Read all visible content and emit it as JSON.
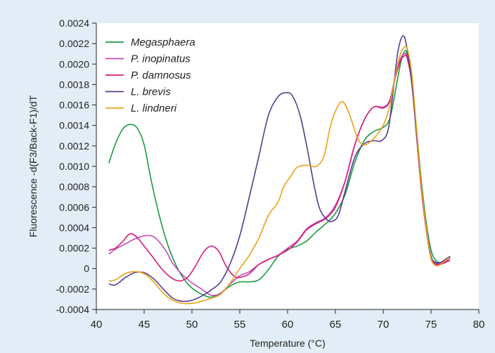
{
  "colors": {
    "background": "#e3edf7",
    "plot_background": "#ffffff",
    "axis": "#222222"
  },
  "chart_data": {
    "type": "line",
    "title": "",
    "xlabel": "Temperature (°C)",
    "ylabel": "Fluorescence -d(F3/Back-F1)/dT",
    "xlim": [
      40,
      80
    ],
    "ylim": [
      -0.0004,
      0.0024
    ],
    "x_ticks": [
      40,
      45,
      50,
      55,
      60,
      65,
      70,
      75,
      80
    ],
    "x_tick_labels": [
      "40",
      "45",
      "50",
      "55",
      "60",
      "65",
      "70",
      "75",
      "80"
    ],
    "y_ticks": [
      -0.0004,
      -0.0002,
      0,
      0.0002,
      0.0004,
      0.0006,
      0.0008,
      0.001,
      0.0012,
      0.0014,
      0.0016,
      0.0018,
      0.002,
      0.0022,
      0.0024
    ],
    "y_tick_labels": [
      "-0.0004",
      "-0.0002",
      "0",
      "0.0002",
      "0.0004",
      "0.0006",
      "0.0008",
      "0.0010",
      "0.0012",
      "0.0014",
      "0.0016",
      "0.0018",
      "0.0020",
      "0.0022",
      "0.0024"
    ],
    "grid": false,
    "legend_position": "top-left",
    "series": [
      {
        "name": "Megasphaera",
        "color": "#1a9a44",
        "points": [
          [
            41.3,
            0.00103
          ],
          [
            42.0,
            0.00122
          ],
          [
            42.8,
            0.00137
          ],
          [
            43.6,
            0.00141
          ],
          [
            44.3,
            0.00137
          ],
          [
            45.0,
            0.00121
          ],
          [
            45.7,
            0.00088
          ],
          [
            46.5,
            0.00055
          ],
          [
            47.3,
            0.00028
          ],
          [
            48.1,
            8e-05
          ],
          [
            49.0,
            -8e-05
          ],
          [
            50.0,
            -0.00019
          ],
          [
            51.0,
            -0.00025
          ],
          [
            52.0,
            -0.00028
          ],
          [
            53.0,
            -0.00024
          ],
          [
            54.0,
            -0.00017
          ],
          [
            55.0,
            -0.00013
          ],
          [
            56.0,
            -0.00013
          ],
          [
            57.0,
            -0.00011
          ],
          [
            58.0,
            -1e-05
          ],
          [
            59.0,
            0.00012
          ],
          [
            60.0,
            0.00019
          ],
          [
            61.0,
            0.00022
          ],
          [
            62.0,
            0.00027
          ],
          [
            63.0,
            0.00036
          ],
          [
            64.0,
            0.00044
          ],
          [
            65.0,
            0.00054
          ],
          [
            66.0,
            0.00072
          ],
          [
            67.0,
            0.00103
          ],
          [
            68.0,
            0.00125
          ],
          [
            69.0,
            0.00134
          ],
          [
            70.0,
            0.00138
          ],
          [
            70.7,
            0.00147
          ],
          [
            71.3,
            0.00175
          ],
          [
            71.8,
            0.002
          ],
          [
            72.2,
            0.00212
          ],
          [
            72.5,
            0.0021
          ],
          [
            73.0,
            0.00185
          ],
          [
            73.5,
            0.00135
          ],
          [
            74.0,
            0.00085
          ],
          [
            74.5,
            0.00045
          ],
          [
            75.0,
            0.00018
          ],
          [
            75.5,
            8e-05
          ],
          [
            76.0,
            6e-05
          ],
          [
            76.5,
            8e-05
          ],
          [
            77.0,
            0.00011
          ]
        ]
      },
      {
        "name": "P. inopinatus",
        "color": "#c24ab8",
        "points": [
          [
            41.3,
            0.00014
          ],
          [
            42.0,
            0.00019
          ],
          [
            43.0,
            0.00024
          ],
          [
            44.0,
            0.00029
          ],
          [
            45.0,
            0.00032
          ],
          [
            45.8,
            0.00032
          ],
          [
            46.5,
            0.00027
          ],
          [
            47.3,
            0.00017
          ],
          [
            48.0,
            5e-05
          ],
          [
            49.0,
            -6e-05
          ],
          [
            50.0,
            -0.00014
          ],
          [
            51.0,
            -0.0002
          ],
          [
            52.0,
            -0.00026
          ],
          [
            53.0,
            -0.00024
          ],
          [
            54.0,
            -0.00015
          ],
          [
            55.0,
            -7e-05
          ],
          [
            56.0,
            -3e-05
          ],
          [
            57.0,
            4e-05
          ],
          [
            58.0,
            9e-05
          ],
          [
            59.0,
            0.00013
          ],
          [
            60.0,
            0.0002
          ],
          [
            61.0,
            0.00027
          ],
          [
            62.0,
            0.00039
          ],
          [
            63.0,
            0.00045
          ],
          [
            64.0,
            0.0005
          ],
          [
            65.0,
            0.00062
          ],
          [
            66.0,
            0.00085
          ],
          [
            67.0,
            0.0012
          ],
          [
            68.0,
            0.00145
          ],
          [
            69.0,
            0.00158
          ],
          [
            70.0,
            0.00158
          ],
          [
            70.7,
            0.00165
          ],
          [
            71.3,
            0.0019
          ],
          [
            71.8,
            0.00205
          ],
          [
            72.2,
            0.0021
          ],
          [
            72.5,
            0.00207
          ],
          [
            73.0,
            0.00182
          ],
          [
            73.5,
            0.0013
          ],
          [
            74.0,
            0.00078
          ],
          [
            74.5,
            0.0004
          ],
          [
            75.0,
            0.00012
          ],
          [
            75.5,
            5e-05
          ],
          [
            76.0,
            5e-05
          ],
          [
            76.5,
            7e-05
          ],
          [
            77.0,
            0.0001
          ]
        ]
      },
      {
        "name": "P. damnosus",
        "color": "#d81b78",
        "points": [
          [
            41.3,
            0.00018
          ],
          [
            42.0,
            0.0002
          ],
          [
            42.8,
            0.00027
          ],
          [
            43.5,
            0.00034
          ],
          [
            44.2,
            0.00031
          ],
          [
            45.0,
            0.00022
          ],
          [
            46.0,
            0.0001
          ],
          [
            47.0,
            -2e-05
          ],
          [
            48.0,
            -0.0001
          ],
          [
            48.8,
            -0.00012
          ],
          [
            49.6,
            -8e-05
          ],
          [
            50.4,
            3e-05
          ],
          [
            51.2,
            0.00016
          ],
          [
            52.0,
            0.00022
          ],
          [
            52.8,
            0.00017
          ],
          [
            53.6,
            2e-05
          ],
          [
            54.5,
            -8e-05
          ],
          [
            55.3,
            -8e-05
          ],
          [
            56.0,
            -5e-05
          ],
          [
            57.0,
            4e-05
          ],
          [
            58.0,
            9e-05
          ],
          [
            59.0,
            0.00013
          ],
          [
            60.0,
            0.00018
          ],
          [
            61.0,
            0.00026
          ],
          [
            62.0,
            0.00038
          ],
          [
            63.0,
            0.00044
          ],
          [
            64.0,
            0.00049
          ],
          [
            65.0,
            0.0006
          ],
          [
            66.0,
            0.00085
          ],
          [
            67.0,
            0.0012
          ],
          [
            68.0,
            0.00145
          ],
          [
            69.0,
            0.00158
          ],
          [
            70.0,
            0.00157
          ],
          [
            70.7,
            0.00164
          ],
          [
            71.3,
            0.00188
          ],
          [
            71.8,
            0.00203
          ],
          [
            72.2,
            0.00208
          ],
          [
            72.5,
            0.00206
          ],
          [
            73.0,
            0.00181
          ],
          [
            73.5,
            0.00128
          ],
          [
            74.0,
            0.00076
          ],
          [
            74.5,
            0.00038
          ],
          [
            75.0,
            0.0001
          ],
          [
            75.5,
            4e-05
          ],
          [
            76.0,
            4e-05
          ],
          [
            76.5,
            6e-05
          ],
          [
            77.0,
            8e-05
          ]
        ]
      },
      {
        "name": "L. brevis",
        "color": "#5a3a8c",
        "points": [
          [
            41.3,
            -0.00015
          ],
          [
            42.0,
            -0.00016
          ],
          [
            43.0,
            -9e-05
          ],
          [
            44.0,
            -4e-05
          ],
          [
            45.0,
            -4e-05
          ],
          [
            46.0,
            -0.0001
          ],
          [
            47.0,
            -0.0002
          ],
          [
            48.0,
            -0.00029
          ],
          [
            49.0,
            -0.00032
          ],
          [
            50.0,
            -0.00031
          ],
          [
            51.0,
            -0.00027
          ],
          [
            52.0,
            -0.00021
          ],
          [
            53.0,
            -0.00013
          ],
          [
            54.0,
            5e-05
          ],
          [
            55.0,
            0.00032
          ],
          [
            56.0,
            0.0007
          ],
          [
            57.0,
            0.0011
          ],
          [
            58.0,
            0.0015
          ],
          [
            59.0,
            0.00168
          ],
          [
            59.8,
            0.00172
          ],
          [
            60.5,
            0.00169
          ],
          [
            61.3,
            0.0015
          ],
          [
            62.0,
            0.0012
          ],
          [
            62.7,
            0.00085
          ],
          [
            63.3,
            0.0006
          ],
          [
            64.0,
            0.00049
          ],
          [
            64.6,
            0.00046
          ],
          [
            65.3,
            0.00052
          ],
          [
            66.0,
            0.00075
          ],
          [
            67.0,
            0.00108
          ],
          [
            68.0,
            0.00122
          ],
          [
            69.0,
            0.00125
          ],
          [
            69.8,
            0.00125
          ],
          [
            70.5,
            0.00135
          ],
          [
            71.0,
            0.0017
          ],
          [
            71.5,
            0.0021
          ],
          [
            72.0,
            0.00227
          ],
          [
            72.4,
            0.0022
          ],
          [
            73.0,
            0.0018
          ],
          [
            73.5,
            0.0013
          ],
          [
            74.0,
            0.0008
          ],
          [
            74.5,
            0.0004
          ],
          [
            75.0,
            0.00012
          ],
          [
            75.5,
            6e-05
          ],
          [
            76.0,
            6e-05
          ],
          [
            76.5,
            9e-05
          ],
          [
            77.0,
            0.00012
          ]
        ]
      },
      {
        "name": "L. lindneri",
        "color": "#e8a218",
        "points": [
          [
            41.3,
            -0.00012
          ],
          [
            42.0,
            -0.00011
          ],
          [
            43.0,
            -5e-05
          ],
          [
            44.0,
            -3e-05
          ],
          [
            45.0,
            -5e-05
          ],
          [
            46.0,
            -0.00013
          ],
          [
            47.0,
            -0.00024
          ],
          [
            48.0,
            -0.00031
          ],
          [
            49.0,
            -0.00034
          ],
          [
            50.0,
            -0.00034
          ],
          [
            51.0,
            -0.00032
          ],
          [
            52.0,
            -0.00029
          ],
          [
            53.0,
            -0.00025
          ],
          [
            54.0,
            -0.00014
          ],
          [
            55.0,
            0.0
          ],
          [
            56.0,
            0.00013
          ],
          [
            57.0,
            0.0003
          ],
          [
            58.0,
            0.00052
          ],
          [
            59.0,
            0.00065
          ],
          [
            59.6,
            0.0008
          ],
          [
            60.3,
            0.0009
          ],
          [
            61.0,
            0.00099
          ],
          [
            62.0,
            0.00101
          ],
          [
            63.0,
            0.001
          ],
          [
            63.8,
            0.0011
          ],
          [
            64.5,
            0.0014
          ],
          [
            65.2,
            0.00158
          ],
          [
            65.8,
            0.00163
          ],
          [
            66.5,
            0.0015
          ],
          [
            67.3,
            0.00128
          ],
          [
            68.0,
            0.00121
          ],
          [
            69.0,
            0.00127
          ],
          [
            70.0,
            0.0014
          ],
          [
            70.7,
            0.0016
          ],
          [
            71.3,
            0.0019
          ],
          [
            71.8,
            0.0021
          ],
          [
            72.3,
            0.00217
          ],
          [
            72.6,
            0.00212
          ],
          [
            73.0,
            0.0019
          ],
          [
            73.5,
            0.00135
          ],
          [
            74.0,
            0.0008
          ],
          [
            74.5,
            0.0004
          ],
          [
            75.0,
            0.0001
          ],
          [
            75.5,
            3e-05
          ],
          [
            76.0,
            4e-05
          ],
          [
            76.5,
            8e-05
          ],
          [
            77.0,
            0.00011
          ]
        ]
      }
    ]
  }
}
